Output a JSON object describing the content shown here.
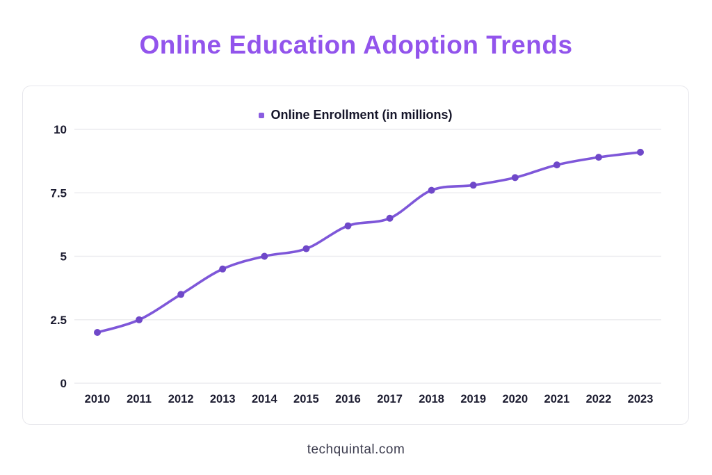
{
  "title": "Online Education Adoption Trends",
  "legend": {
    "label": "Online Enrollment (in millions)",
    "marker_color": "#8a5ce0"
  },
  "footer": {
    "text": "techquintal.com"
  },
  "colors": {
    "title": "#9254ec",
    "line": "#7e57d9",
    "point": "#6f48c9",
    "grid": "#ececef",
    "tick_label": "#1c1c30",
    "card_border": "#e7e7ec",
    "footer_text": "#3c3c4e"
  },
  "chart_data": {
    "type": "line",
    "title": "Online Education Adoption Trends",
    "categories": [
      "2010",
      "2011",
      "2012",
      "2013",
      "2014",
      "2015",
      "2016",
      "2017",
      "2018",
      "2019",
      "2020",
      "2021",
      "2022",
      "2023"
    ],
    "series": [
      {
        "name": "Online Enrollment (in millions)",
        "values": [
          2.0,
          2.5,
          3.5,
          4.5,
          5.0,
          5.3,
          6.2,
          6.5,
          7.6,
          7.8,
          8.1,
          8.6,
          8.9,
          9.1
        ]
      }
    ],
    "xlabel": "",
    "ylabel": "",
    "ylim": [
      0,
      10
    ],
    "yticks": [
      0,
      2.5,
      5,
      7.5,
      10
    ],
    "grid": "horizontal",
    "legend_position": "top-center",
    "smooth": true
  }
}
